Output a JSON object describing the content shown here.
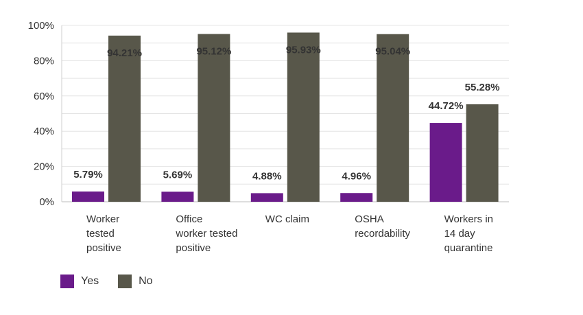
{
  "chart_data": {
    "type": "bar",
    "categories": [
      [
        "Worker",
        "tested",
        "positive"
      ],
      [
        "Office",
        "worker tested",
        "positive"
      ],
      [
        "WC claim"
      ],
      [
        "OSHA",
        "recordability"
      ],
      [
        "Workers in",
        "14 day",
        "quarantine"
      ]
    ],
    "series": [
      {
        "name": "Yes",
        "color": "#6a1b8a",
        "values": [
          5.79,
          5.69,
          4.88,
          4.96,
          44.72
        ],
        "labels": [
          "5.79%",
          "5.69%",
          "4.88%",
          "4.96%",
          "44.72%"
        ]
      },
      {
        "name": "No",
        "color": "#58574a",
        "values": [
          94.21,
          95.12,
          95.93,
          95.04,
          55.28
        ],
        "labels": [
          "94.21%",
          "95.12%",
          "95.93%",
          "95.04%",
          "55.28%"
        ]
      }
    ],
    "y_ticks": [
      "0%",
      "20%",
      "40%",
      "60%",
      "80%",
      "100%"
    ],
    "ylim": [
      0,
      100
    ],
    "grid": true,
    "legend_position": "bottom-left"
  }
}
